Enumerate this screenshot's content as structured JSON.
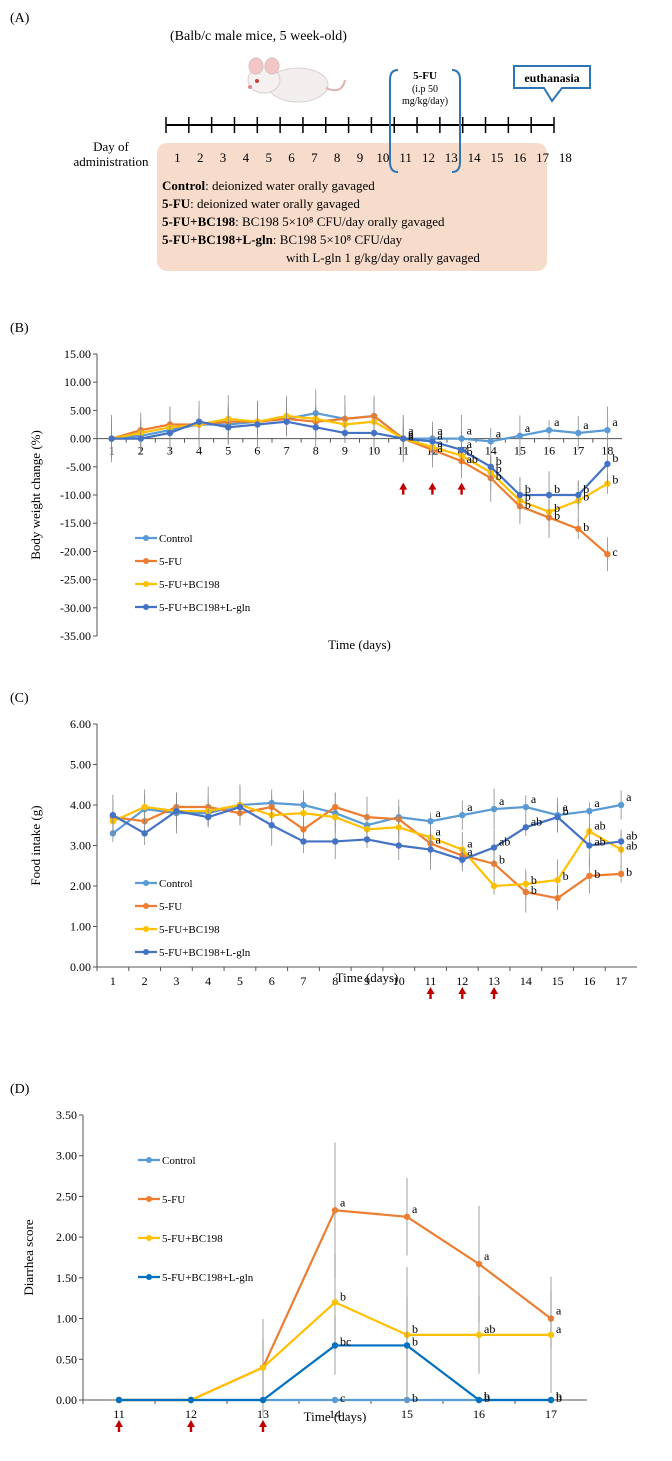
{
  "panel_a": {
    "label": "(A)",
    "subtitle": "(Balb/c male mice, 5 week-old)",
    "fu_box": [
      "5-FU",
      "(i.p 50",
      "mg/kg/day)"
    ],
    "euthanasia": "euthanasia",
    "day_label": [
      "Day of",
      "administration"
    ],
    "days": [
      "1",
      "2",
      "3",
      "4",
      "5",
      "6",
      "7",
      "8",
      "9",
      "10",
      "11",
      "12",
      "13",
      "14",
      "15",
      "16",
      "17",
      "18"
    ],
    "groups": [
      {
        "name": "Control",
        "desc": ": deionized water orally gavaged"
      },
      {
        "name": "5-FU",
        "desc": ": deionized water orally gavaged"
      },
      {
        "name": "5-FU+BC198",
        "desc": ": BC198 5×10⁸ CFU/day orally gavaged"
      },
      {
        "name": "5-FU+BC198+L-gln",
        "desc": ": BC198 5×10⁸ CFU/day"
      }
    ],
    "extra_line": "with L-gln 1 g/kg/day orally gavaged"
  },
  "colors": {
    "control": "#5b9bd5",
    "fu": "#ed7d31",
    "bc198": "#ffc000",
    "lgln": "#4472c4",
    "arrow": "#c00000",
    "box": "#f8dccb"
  },
  "chart_data": [
    {
      "id": "B",
      "label": "(B)",
      "type": "line",
      "ylabel": "Body weight change (%)",
      "xlabel": "Time (days)",
      "x": [
        1,
        2,
        3,
        4,
        5,
        6,
        7,
        8,
        9,
        10,
        11,
        12,
        13,
        14,
        15,
        16,
        17,
        18
      ],
      "ylim": [
        -35,
        15
      ],
      "yticks": [
        "15.00",
        "10.00",
        "5.00",
        "0.00",
        "-5.00",
        "-10.00",
        "-15.00",
        "-20.00",
        "-25.00",
        "-30.00",
        "-35.00"
      ],
      "series": [
        {
          "name": "Control",
          "color": "#5b9bd5",
          "values": [
            0,
            0.5,
            1.5,
            2.5,
            2.5,
            3,
            3.5,
            4.5,
            3.5,
            4,
            0,
            0,
            0,
            -0.5,
            0.5,
            1.5,
            1,
            1.5
          ]
        },
        {
          "name": "5-FU",
          "color": "#ed7d31",
          "values": [
            0,
            1.5,
            2.5,
            2.5,
            3,
            3,
            3.5,
            3,
            3.5,
            4,
            0,
            -2,
            -4,
            -7,
            -12,
            -14,
            -16,
            -20.5
          ]
        },
        {
          "name": "5-FU+BC198",
          "color": "#ffc000",
          "values": [
            0,
            1,
            2,
            2.5,
            3.5,
            3,
            4,
            3.5,
            2.5,
            3,
            0,
            -1.5,
            -3,
            -6,
            -11,
            -13,
            -11,
            -8
          ]
        },
        {
          "name": "5-FU+BC198+L-gln",
          "color": "#4472c4",
          "values": [
            0,
            0,
            1,
            3,
            2,
            2.5,
            3,
            2,
            1,
            1,
            0,
            -0.5,
            -2,
            -5,
            -10,
            -10,
            -10,
            -4.5
          ]
        }
      ],
      "annotations": [
        {
          "x": 11,
          "labels": [
            "a",
            "a",
            "a",
            "a"
          ]
        },
        {
          "x": 12,
          "labels": [
            "a",
            "a",
            "a",
            "a"
          ]
        },
        {
          "x": 13,
          "labels": [
            "a",
            "a",
            "b",
            "ab"
          ]
        },
        {
          "x": 14,
          "labels": [
            "a",
            "b",
            "b",
            "b"
          ]
        },
        {
          "x": 15,
          "labels": [
            "a",
            "b",
            "b",
            "b"
          ]
        },
        {
          "x": 16,
          "labels": [
            "a",
            "b",
            "b",
            "b"
          ]
        },
        {
          "x": 17,
          "labels": [
            "a",
            "b",
            "b",
            "b"
          ]
        },
        {
          "x": 18,
          "labels": [
            "a",
            "b",
            "b",
            "c"
          ]
        }
      ],
      "arrows": [
        11,
        12,
        13
      ],
      "legend": [
        "Control",
        "5-FU",
        "5-FU+BC198",
        "5-FU+BC198+L-gln"
      ]
    },
    {
      "id": "C",
      "label": "(C)",
      "type": "line",
      "ylabel": "Food intake (g)",
      "xlabel": "Time (days)",
      "x": [
        1,
        2,
        3,
        4,
        5,
        6,
        7,
        8,
        9,
        10,
        11,
        12,
        13,
        14,
        15,
        16,
        17
      ],
      "ylim": [
        0,
        6
      ],
      "yticks": [
        "6.00",
        "5.00",
        "4.00",
        "3.00",
        "2.00",
        "1.00",
        "0.00"
      ],
      "series": [
        {
          "name": "Control",
          "color": "#5b9bd5",
          "values": [
            3.3,
            3.9,
            3.8,
            3.8,
            4.0,
            4.05,
            4.0,
            3.8,
            3.5,
            3.7,
            3.6,
            3.75,
            3.9,
            3.95,
            3.75,
            3.85,
            4.0
          ]
        },
        {
          "name": "5-FU",
          "color": "#ed7d31",
          "values": [
            3.7,
            3.6,
            3.95,
            3.95,
            3.8,
            3.95,
            3.4,
            3.95,
            3.7,
            3.65,
            3.05,
            2.75,
            2.55,
            1.85,
            1.7,
            2.25,
            2.3
          ]
        },
        {
          "name": "5-FU+BC198",
          "color": "#ffc000",
          "values": [
            3.6,
            3.95,
            3.85,
            3.85,
            4.0,
            3.75,
            3.8,
            3.7,
            3.4,
            3.45,
            3.2,
            2.9,
            2.0,
            2.05,
            2.15,
            3.35,
            2.9
          ]
        },
        {
          "name": "5-FU+BC198+L-gln",
          "color": "#4472c4",
          "values": [
            3.75,
            3.3,
            3.85,
            3.7,
            3.95,
            3.5,
            3.1,
            3.1,
            3.15,
            3.0,
            2.9,
            2.65,
            2.95,
            3.45,
            3.7,
            3.0,
            3.1
          ]
        }
      ],
      "annotations": [
        {
          "x": 11,
          "labels": [
            "a",
            "a",
            "a"
          ]
        },
        {
          "x": 12,
          "labels": [
            "a",
            "a",
            "a"
          ]
        },
        {
          "x": 13,
          "labels": [
            "a",
            "ab",
            "b"
          ]
        },
        {
          "x": 14,
          "labels": [
            "a",
            "ab",
            "b",
            "b"
          ]
        },
        {
          "x": 15,
          "labels": [
            "a",
            "b",
            "b"
          ]
        },
        {
          "x": 16,
          "labels": [
            "a",
            "ab",
            "ab",
            "b"
          ]
        },
        {
          "x": 17,
          "labels": [
            "a",
            "ab",
            "ab",
            "b"
          ]
        }
      ],
      "arrows": [
        11,
        12,
        13
      ],
      "legend": [
        "Control",
        "5-FU",
        "5-FU+BC198",
        "5-FU+BC198+L-gln"
      ]
    },
    {
      "id": "D",
      "label": "(D)",
      "type": "line",
      "ylabel": "Diarrhea score",
      "xlabel": "Time (days)",
      "x": [
        11,
        12,
        13,
        14,
        15,
        16,
        17
      ],
      "ylim": [
        0,
        3.5
      ],
      "yticks": [
        "3.50",
        "3.00",
        "2.50",
        "2.00",
        "1.50",
        "1.00",
        "0.50",
        "0.00"
      ],
      "series": [
        {
          "name": "Control",
          "color": "#5b9bd5",
          "values": [
            0,
            0,
            0,
            0,
            0,
            0,
            0
          ]
        },
        {
          "name": "5-FU",
          "color": "#ed7d31",
          "values": [
            0,
            0,
            0.4,
            2.33,
            2.25,
            1.67,
            1.0
          ]
        },
        {
          "name": "5-FU+BC198",
          "color": "#ffc000",
          "values": [
            0,
            0,
            0.4,
            1.2,
            0.8,
            0.8,
            0.8
          ]
        },
        {
          "name": "5-FU+BC198+L-gln",
          "color": "#0070c0",
          "values": [
            0,
            0,
            0,
            0.67,
            0.67,
            0,
            0
          ]
        }
      ],
      "annotations": [
        {
          "x": 14,
          "labels": [
            "a",
            "b",
            "bc",
            "c"
          ]
        },
        {
          "x": 15,
          "labels": [
            "a",
            "b",
            "b",
            "b"
          ]
        },
        {
          "x": 16,
          "labels": [
            "a",
            "ab",
            "b",
            "b"
          ]
        },
        {
          "x": 17,
          "labels": [
            "a",
            "a",
            "b",
            "b"
          ]
        }
      ],
      "arrows": [
        11,
        12,
        13
      ],
      "legend": [
        "Control",
        "5-FU",
        "5-FU+BC198",
        "5-FU+BC198+L-gln"
      ]
    }
  ]
}
